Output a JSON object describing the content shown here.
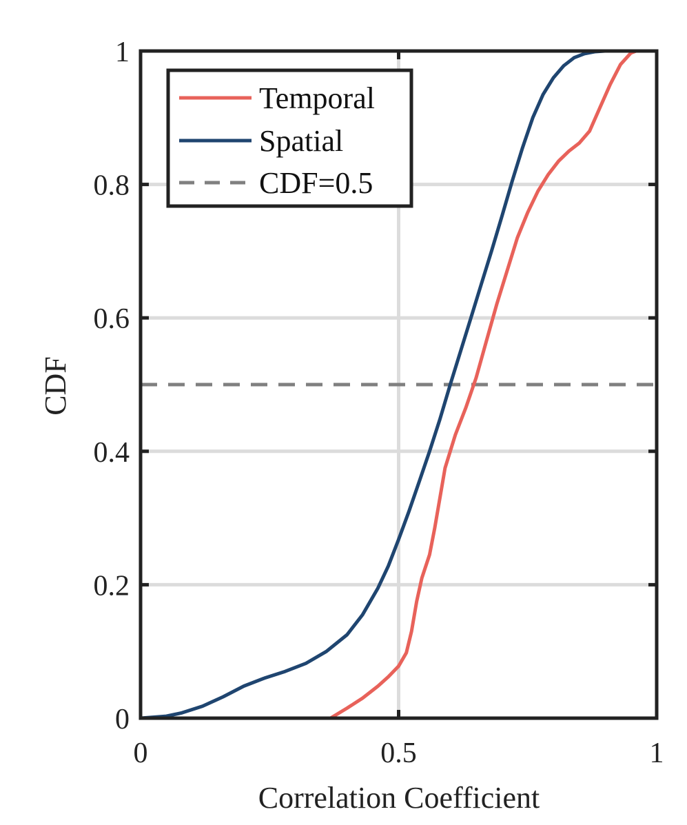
{
  "chart_data": {
    "type": "line",
    "xlabel": "Correlation Coefficient",
    "ylabel": "CDF",
    "xlim": [
      0,
      1
    ],
    "ylim": [
      0,
      1
    ],
    "x_ticks": [
      0,
      0.5,
      1
    ],
    "x_tick_labels": [
      "0",
      "0.5",
      "1"
    ],
    "y_ticks": [
      0,
      0.2,
      0.4,
      0.6,
      0.8,
      1
    ],
    "y_tick_labels": [
      "0",
      "0.2",
      "0.4",
      "0.6",
      "0.8",
      "1"
    ],
    "grid": true,
    "legend_position": "top-left",
    "series": [
      {
        "name": "Temporal",
        "color": "#e8625a",
        "style": "solid",
        "points": [
          [
            0.368,
            0.0
          ],
          [
            0.4,
            0.015
          ],
          [
            0.43,
            0.03
          ],
          [
            0.46,
            0.048
          ],
          [
            0.48,
            0.062
          ],
          [
            0.5,
            0.078
          ],
          [
            0.515,
            0.098
          ],
          [
            0.525,
            0.13
          ],
          [
            0.535,
            0.175
          ],
          [
            0.545,
            0.21
          ],
          [
            0.56,
            0.245
          ],
          [
            0.57,
            0.285
          ],
          [
            0.58,
            0.33
          ],
          [
            0.59,
            0.375
          ],
          [
            0.61,
            0.425
          ],
          [
            0.63,
            0.465
          ],
          [
            0.65,
            0.51
          ],
          [
            0.67,
            0.565
          ],
          [
            0.69,
            0.62
          ],
          [
            0.71,
            0.67
          ],
          [
            0.73,
            0.72
          ],
          [
            0.75,
            0.758
          ],
          [
            0.77,
            0.79
          ],
          [
            0.79,
            0.815
          ],
          [
            0.81,
            0.835
          ],
          [
            0.83,
            0.85
          ],
          [
            0.85,
            0.862
          ],
          [
            0.87,
            0.88
          ],
          [
            0.89,
            0.915
          ],
          [
            0.91,
            0.95
          ],
          [
            0.93,
            0.98
          ],
          [
            0.95,
            0.997
          ],
          [
            0.96,
            1.0
          ],
          [
            1.0,
            1.0
          ]
        ]
      },
      {
        "name": "Spatial",
        "color": "#1f4570",
        "style": "solid",
        "points": [
          [
            0.0,
            0.0
          ],
          [
            0.05,
            0.003
          ],
          [
            0.08,
            0.008
          ],
          [
            0.12,
            0.018
          ],
          [
            0.16,
            0.032
          ],
          [
            0.2,
            0.048
          ],
          [
            0.24,
            0.06
          ],
          [
            0.28,
            0.07
          ],
          [
            0.32,
            0.082
          ],
          [
            0.36,
            0.1
          ],
          [
            0.4,
            0.125
          ],
          [
            0.43,
            0.155
          ],
          [
            0.46,
            0.195
          ],
          [
            0.48,
            0.228
          ],
          [
            0.5,
            0.268
          ],
          [
            0.52,
            0.31
          ],
          [
            0.54,
            0.355
          ],
          [
            0.56,
            0.4
          ],
          [
            0.58,
            0.448
          ],
          [
            0.6,
            0.5
          ],
          [
            0.62,
            0.55
          ],
          [
            0.64,
            0.6
          ],
          [
            0.66,
            0.65
          ],
          [
            0.68,
            0.7
          ],
          [
            0.7,
            0.752
          ],
          [
            0.72,
            0.805
          ],
          [
            0.74,
            0.855
          ],
          [
            0.76,
            0.9
          ],
          [
            0.78,
            0.935
          ],
          [
            0.8,
            0.96
          ],
          [
            0.82,
            0.978
          ],
          [
            0.84,
            0.99
          ],
          [
            0.86,
            0.996
          ],
          [
            0.88,
            0.999
          ],
          [
            0.9,
            1.0
          ],
          [
            1.0,
            1.0
          ]
        ]
      },
      {
        "name": "CDF=0.5",
        "color": "#808080",
        "style": "dashed",
        "points": [
          [
            0,
            0.5
          ],
          [
            1,
            0.5
          ]
        ]
      }
    ]
  }
}
